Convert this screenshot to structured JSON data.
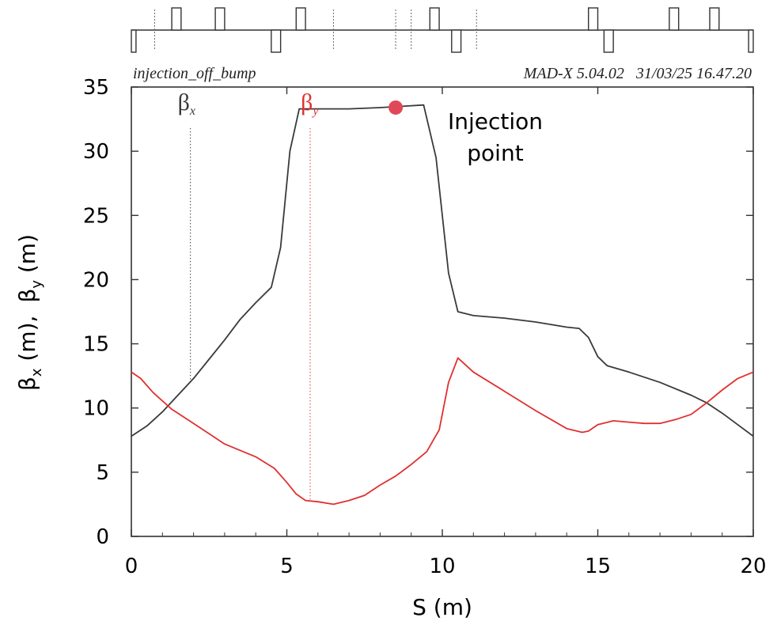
{
  "chart_data": {
    "type": "line",
    "header_left": "injection_off_bump",
    "header_right": "MAD-X 5.04.02   31/03/25 16.47.20",
    "xlabel": "S (m)",
    "ylabel": {
      "beta": "β",
      "sub_x": "x",
      "sub_y": "y",
      "unit_x": " (m),",
      "unit_y": " (m)"
    },
    "xlim": [
      0,
      20
    ],
    "ylim": [
      0,
      35
    ],
    "x_ticks": [
      0,
      5,
      10,
      15,
      20
    ],
    "y_ticks": [
      0,
      5,
      10,
      15,
      20,
      25,
      30,
      35
    ],
    "series": [
      {
        "name": "β",
        "subscript": "x",
        "color": "#3a3a3a",
        "label_at": [
          2.0,
          33.2
        ],
        "marker_s": 1.9,
        "points": [
          [
            0,
            7.8
          ],
          [
            0.5,
            8.6
          ],
          [
            1,
            9.7
          ],
          [
            1.5,
            11.0
          ],
          [
            2,
            12.3
          ],
          [
            2.5,
            13.8
          ],
          [
            3,
            15.3
          ],
          [
            3.5,
            16.9
          ],
          [
            4,
            18.2
          ],
          [
            4.5,
            19.4
          ],
          [
            4.8,
            22.5
          ],
          [
            5.1,
            30.0
          ],
          [
            5.4,
            33.3
          ],
          [
            6,
            33.3
          ],
          [
            7,
            33.3
          ],
          [
            8,
            33.4
          ],
          [
            9.4,
            33.6
          ],
          [
            9.8,
            29.5
          ],
          [
            10.2,
            20.5
          ],
          [
            10.5,
            17.5
          ],
          [
            11,
            17.2
          ],
          [
            12,
            17.0
          ],
          [
            13,
            16.7
          ],
          [
            14,
            16.3
          ],
          [
            14.4,
            16.2
          ],
          [
            14.7,
            15.5
          ],
          [
            15,
            14.0
          ],
          [
            15.3,
            13.3
          ],
          [
            16,
            12.8
          ],
          [
            17,
            12.0
          ],
          [
            18,
            11.0
          ],
          [
            18.5,
            10.4
          ],
          [
            19,
            9.6
          ],
          [
            19.5,
            8.7
          ],
          [
            20,
            7.8
          ]
        ]
      },
      {
        "name": "β",
        "subscript": "y",
        "color": "#e03030",
        "label_at": [
          5.6,
          33.2
        ],
        "marker_s": 5.75,
        "points": [
          [
            0,
            12.8
          ],
          [
            0.3,
            12.3
          ],
          [
            0.7,
            11.2
          ],
          [
            1.3,
            9.9
          ],
          [
            2,
            8.8
          ],
          [
            3,
            7.2
          ],
          [
            4,
            6.2
          ],
          [
            4.6,
            5.3
          ],
          [
            5,
            4.2
          ],
          [
            5.3,
            3.3
          ],
          [
            5.6,
            2.8
          ],
          [
            6,
            2.7
          ],
          [
            6.5,
            2.5
          ],
          [
            7,
            2.8
          ],
          [
            7.5,
            3.2
          ],
          [
            8,
            4.0
          ],
          [
            8.5,
            4.7
          ],
          [
            9,
            5.6
          ],
          [
            9.5,
            6.6
          ],
          [
            9.9,
            8.3
          ],
          [
            10.2,
            12.0
          ],
          [
            10.5,
            13.9
          ],
          [
            11,
            12.8
          ],
          [
            12,
            11.3
          ],
          [
            13,
            9.8
          ],
          [
            14,
            8.4
          ],
          [
            14.5,
            8.1
          ],
          [
            14.7,
            8.2
          ],
          [
            15,
            8.7
          ],
          [
            15.5,
            9.0
          ],
          [
            16,
            8.9
          ],
          [
            16.5,
            8.8
          ],
          [
            17,
            8.8
          ],
          [
            17.5,
            9.1
          ],
          [
            18,
            9.5
          ],
          [
            18.5,
            10.4
          ],
          [
            19,
            11.4
          ],
          [
            19.5,
            12.3
          ],
          [
            20,
            12.8
          ]
        ]
      }
    ],
    "annotation": {
      "lines": [
        "Injection",
        "point"
      ],
      "x": 8.5,
      "y": 33.4,
      "color": "#e04858"
    },
    "lattice": {
      "up": [
        [
          1.3,
          1.6
        ],
        [
          2.7,
          3.0
        ],
        [
          5.3,
          5.6
        ],
        [
          9.6,
          9.9
        ],
        [
          14.7,
          15.0
        ],
        [
          17.3,
          17.6
        ],
        [
          18.6,
          18.9
        ]
      ],
      "down": [
        [
          0,
          0.15
        ],
        [
          4.5,
          4.8
        ],
        [
          10.3,
          10.6
        ],
        [
          15.2,
          15.5
        ],
        [
          19.85,
          20
        ]
      ],
      "markers": [
        0.75,
        6.5,
        8.5,
        9.0,
        11.1
      ]
    }
  }
}
